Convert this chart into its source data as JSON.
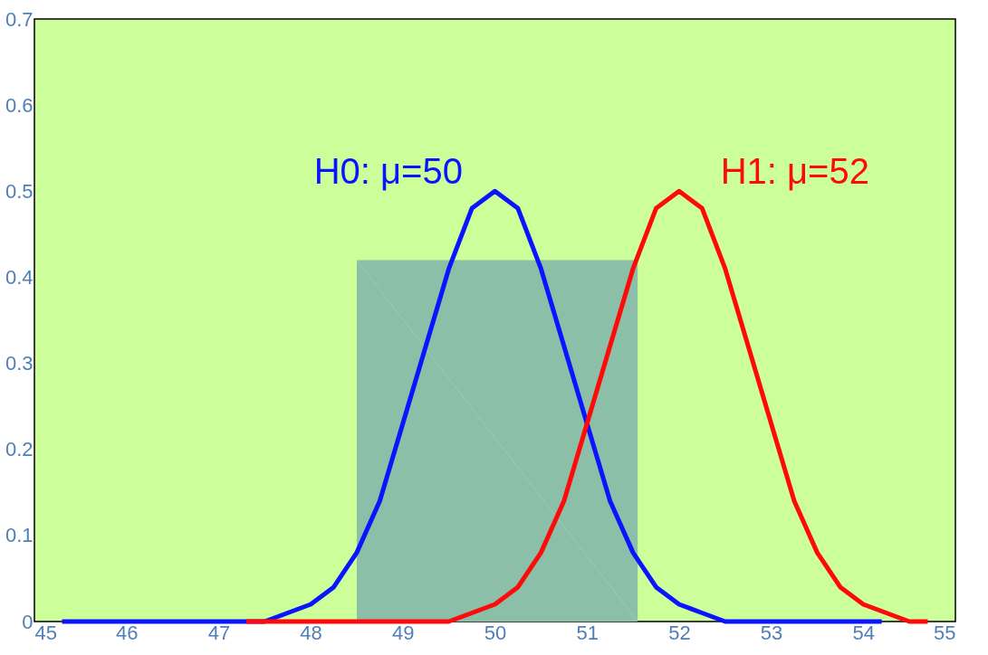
{
  "chart_data": {
    "type": "line",
    "xlim": [
      45,
      55
    ],
    "ylim": [
      0,
      0.7
    ],
    "xticks": [
      45,
      46,
      47,
      48,
      49,
      50,
      51,
      52,
      53,
      54,
      55
    ],
    "yticks": [
      0,
      0.1,
      0.2,
      0.3,
      0.4,
      0.5,
      0.6,
      0.7
    ],
    "grid": false,
    "marker": "none",
    "line_style": "solid",
    "series": [
      {
        "type": "area",
        "color": "#8cbfa8",
        "x": [
          48.5,
          51.55
        ],
        "values": [
          0.42,
          0.42
        ]
      },
      {
        "name": "H0: μ=50",
        "color": "#0a14ff",
        "x": [
          45.3,
          47,
          47.5,
          47.75,
          48,
          48.25,
          48.5,
          48.75,
          49,
          49.25,
          49.5,
          49.75,
          50,
          50.25,
          50.5,
          50.75,
          51,
          51.25,
          51.5,
          51.75,
          52,
          52.25,
          52.5,
          53,
          54.2
        ],
        "values": [
          0,
          0,
          0,
          0.01,
          0.02,
          0.04,
          0.08,
          0.14,
          0.23,
          0.32,
          0.41,
          0.48,
          0.5,
          0.48,
          0.41,
          0.32,
          0.23,
          0.14,
          0.08,
          0.04,
          0.02,
          0.01,
          0,
          0,
          0
        ]
      },
      {
        "name": "H1: μ=52",
        "color": "#ff0a0a",
        "x": [
          47.3,
          49,
          49.5,
          49.75,
          50,
          50.25,
          50.5,
          50.75,
          51,
          51.25,
          51.5,
          51.75,
          52,
          52.25,
          52.5,
          52.75,
          53,
          53.25,
          53.5,
          53.75,
          54,
          54.25,
          54.5,
          54.7
        ],
        "values": [
          0,
          0,
          0,
          0.01,
          0.02,
          0.04,
          0.08,
          0.14,
          0.23,
          0.32,
          0.41,
          0.48,
          0.5,
          0.48,
          0.41,
          0.32,
          0.23,
          0.14,
          0.08,
          0.04,
          0.02,
          0.01,
          0,
          0
        ]
      }
    ]
  }
}
